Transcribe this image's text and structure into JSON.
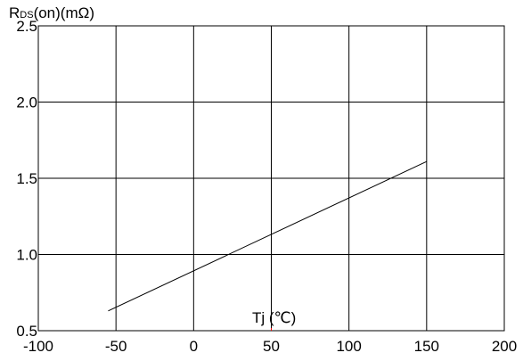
{
  "chart_data": {
    "type": "line",
    "title": "",
    "ylabel": {
      "main": "R",
      "sub": "DS",
      "rest": "(on)(mΩ)"
    },
    "xlabel": "Tj (℃)",
    "xlim": [
      -100,
      200
    ],
    "ylim": [
      0.5,
      2.5
    ],
    "x_ticks": [
      -100,
      -50,
      0,
      50,
      100,
      150,
      200
    ],
    "x_tick_labels": [
      "-100",
      "-50",
      "0",
      "50",
      "100",
      "150",
      "200"
    ],
    "y_ticks": [
      0.5,
      1.0,
      1.5,
      2.0,
      2.5
    ],
    "y_tick_labels": [
      "0.5",
      "1.0",
      "1.5",
      "2.0",
      "2.5"
    ],
    "grid": true,
    "series": [
      {
        "x": [
          -55,
          150
        ],
        "y": [
          0.63,
          1.61
        ]
      }
    ],
    "colors": {
      "line": "#000000",
      "grid": "#000000",
      "marker": "#ff0000"
    }
  }
}
